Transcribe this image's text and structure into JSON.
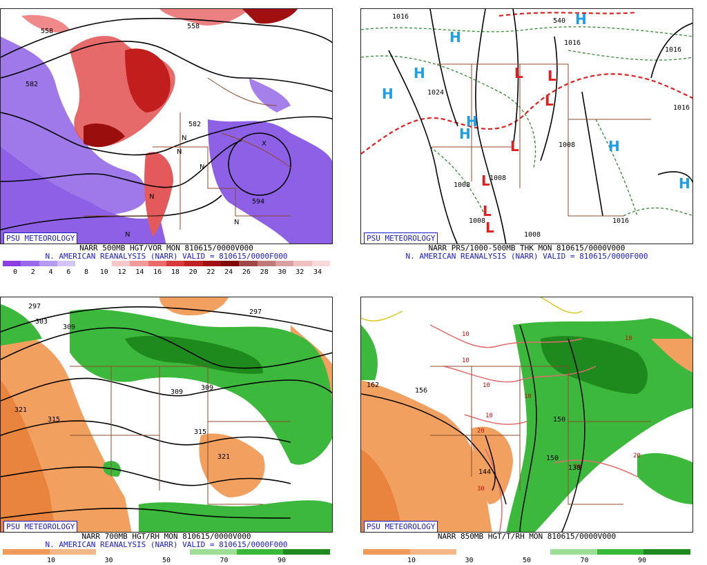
{
  "panels": [
    {
      "id": "vor",
      "badge": "PSU METEOROLOGY",
      "caption_line1": "NARR 500MB HGT/VOR MON 810615/0000V000",
      "caption_line2": "N. AMERICAN REANALYSIS (NARR) VALID = 810615/0000F000",
      "colorbar_colors": [
        "#8a3fe0",
        "#9a6ae8",
        "#b49af0",
        "#d2c4f6",
        "#ffffff",
        "#ffffff",
        "#f8c8c8",
        "#f19a9a",
        "#e86a6a",
        "#d83a3a",
        "#c02020",
        "#a01010",
        "#800808",
        "#a04848",
        "#c07878",
        "#d8a0a0",
        "#f0c0c0",
        "#f8d8d8"
      ],
      "tick_labels": [
        "0",
        "2",
        "4",
        "6",
        "8",
        "10",
        "12",
        "14",
        "16",
        "18",
        "20",
        "22",
        "24",
        "26",
        "28",
        "30",
        "32",
        "34"
      ],
      "contour_labels": [
        "558",
        "558",
        "582",
        "582",
        "594"
      ],
      "symbols": [
        "N",
        "N",
        "N",
        "N",
        "N",
        "N",
        "N",
        "X"
      ]
    },
    {
      "id": "prs",
      "badge": "PSU METEOROLOGY",
      "caption_line1": "NARR PRS/1000-500MB THK MON 810615/0000V000",
      "caption_line2": "N. AMERICAN REANALYSIS (NARR) VALID = 810615/0000F000",
      "contour_labels": [
        "1016",
        "540",
        "1016",
        "1024",
        "1016",
        "1008",
        "1008",
        "1008",
        "1008",
        "1008",
        "1016",
        "1016"
      ],
      "high_symbol": "H",
      "low_symbol": "L"
    },
    {
      "id": "rh700",
      "badge": "PSU METEOROLOGY",
      "caption_line1": "NARR 700MB HGT/RH MON 810615/0000V000",
      "caption_line2": "N. AMERICAN REANALYSIS (NARR) VALID = 810615/0000F000",
      "colorbar_colors": [
        "#f09a5a",
        "#f4b888",
        "#ffffff",
        "#ffffff",
        "#9ede96",
        "#38b838",
        "#1e8a1e"
      ],
      "tick_labels": [
        "10",
        "30",
        "50",
        "70",
        "90"
      ],
      "contour_labels": [
        "297",
        "303",
        "309",
        "297",
        "309",
        "321",
        "315",
        "309",
        "309",
        "315",
        "321"
      ]
    },
    {
      "id": "rh850",
      "badge": "PSU METEOROLOGY",
      "caption_line1": "NARR 850MB HGT/T/RH MON 810615/0000V000",
      "colorbar_colors": [
        "#f09a5a",
        "#f4b888",
        "#ffffff",
        "#ffffff",
        "#9ede96",
        "#38b838",
        "#1e8a1e"
      ],
      "tick_labels": [
        "10",
        "30",
        "50",
        "70",
        "90"
      ],
      "contour_labels": [
        "10",
        "10",
        "10",
        "10",
        "10",
        "10",
        "20",
        "20",
        "20",
        "30",
        "162",
        "156",
        "150",
        "144",
        "150",
        "138"
      ]
    }
  ],
  "colors": {
    "badge_blue": "#1a1acc",
    "map_line": "#8b4a2b",
    "green": "#3cb83c",
    "orange": "#f2a060",
    "low_red": "#e21e1e",
    "high_cyan": "#1e9ee6"
  }
}
